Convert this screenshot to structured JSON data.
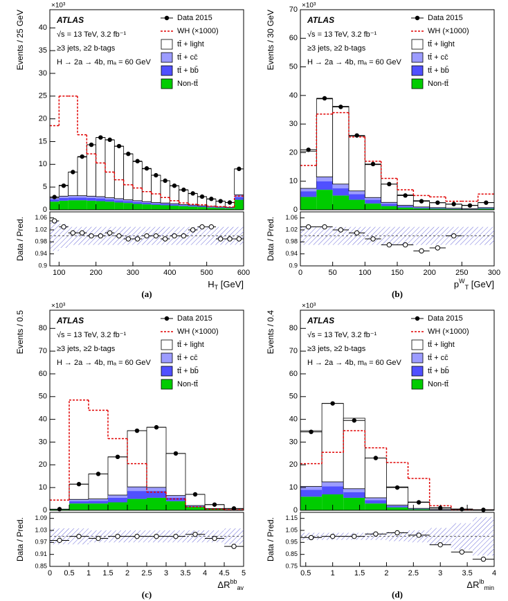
{
  "chart_data": [
    {
      "type": "stacked-histogram",
      "label": "(a)",
      "multiplier": "×10³",
      "atlas": "ATLAS",
      "annotations": [
        "√s = 13 TeV, 3.2 fb⁻¹",
        "≥3 jets, ≥2 b-tags",
        "H → 2a → 4b, mₐ = 60 GeV"
      ],
      "y_label": "Events / 25 GeV",
      "x_label": [
        {
          "text": "H"
        },
        {
          "text": "T",
          "shift": "sub"
        },
        {
          "text": " [GeV]"
        }
      ],
      "xlim": [
        75,
        600
      ],
      "xticks": [
        100,
        200,
        300,
        400,
        500,
        600
      ],
      "ylim": [
        0,
        44
      ],
      "yticks": [
        0,
        5,
        10,
        15,
        20,
        25,
        30,
        35,
        40
      ],
      "bins": [
        75,
        100,
        125,
        150,
        175,
        200,
        225,
        250,
        275,
        300,
        325,
        350,
        375,
        400,
        425,
        450,
        475,
        500,
        525,
        550,
        575,
        600
      ],
      "series": [
        {
          "name": "Non-tt̄",
          "color": "#00cc00",
          "values": [
            1.8,
            2.0,
            2.1,
            2.1,
            2.0,
            1.9,
            1.8,
            1.6,
            1.5,
            1.3,
            1.2,
            1.1,
            1.0,
            0.9,
            0.8,
            0.7,
            0.6,
            0.5,
            0.4,
            0.35,
            2.2
          ]
        },
        {
          "name": "tt̄ + bb̄",
          "color": "#5050ff",
          "values": [
            0.5,
            0.6,
            0.6,
            0.6,
            0.6,
            0.6,
            0.5,
            0.5,
            0.4,
            0.4,
            0.35,
            0.3,
            0.3,
            0.25,
            0.2,
            0.2,
            0.15,
            0.15,
            0.12,
            0.1,
            0.6
          ]
        },
        {
          "name": "tt̄ + cc̄",
          "color": "#9c9cff",
          "values": [
            0.3,
            0.4,
            0.4,
            0.4,
            0.4,
            0.4,
            0.35,
            0.35,
            0.3,
            0.3,
            0.25,
            0.2,
            0.2,
            0.2,
            0.15,
            0.15,
            0.12,
            0.1,
            0.1,
            0.08,
            0.5
          ]
        },
        {
          "name": "tt̄ + light",
          "color": "#ffffff",
          "values": [
            0.2,
            2.4,
            5.2,
            8.5,
            11.3,
            13.0,
            12.7,
            11.5,
            10.1,
            8.6,
            7.2,
            6.0,
            4.9,
            3.9,
            3.2,
            2.5,
            2.0,
            1.6,
            1.3,
            1.1,
            5.7
          ]
        }
      ],
      "data": {
        "name": "Data 2015",
        "values": [
          2.8,
          5.3,
          8.3,
          11.7,
          14.3,
          15.9,
          15.4,
          14.0,
          12.3,
          10.7,
          9.1,
          7.6,
          6.4,
          5.3,
          4.4,
          3.6,
          2.9,
          2.4,
          1.9,
          1.6,
          9.0
        ]
      },
      "signal": {
        "name": "WH (×1000)",
        "color": "#e00000",
        "values": [
          18.5,
          25,
          25,
          16.5,
          12.3,
          10.3,
          8.3,
          6.6,
          5.5,
          4.8,
          4.0,
          3.5,
          2.7,
          2.0,
          1.5,
          1.2,
          1.1,
          0.8,
          0.7,
          0.6,
          3.0
        ]
      },
      "ratio": {
        "y_label": "Data / Pred.",
        "ylim": [
          0.9,
          1.08
        ],
        "yticks": [
          0.9,
          0.94,
          0.98,
          1.02,
          1.06
        ],
        "reference": 1,
        "values": [
          1.05,
          1.03,
          1.01,
          1.01,
          1.0,
          1.0,
          1.01,
          1.0,
          0.99,
          0.99,
          1.0,
          1.0,
          0.99,
          1.0,
          1.0,
          1.02,
          1.03,
          1.03,
          0.99,
          0.99,
          0.99
        ],
        "band": [
          0.05,
          0.04,
          0.03,
          0.03,
          0.03,
          0.03,
          0.03,
          0.03,
          0.03,
          0.03,
          0.03,
          0.03,
          0.03,
          0.03,
          0.03,
          0.03,
          0.03,
          0.03,
          0.03,
          0.03,
          0.03
        ]
      }
    },
    {
      "type": "stacked-histogram",
      "label": "(b)",
      "multiplier": "×10³",
      "atlas": "ATLAS",
      "annotations": [
        "√s = 13 TeV, 3.2 fb⁻¹",
        "≥3 jets, ≥2 b-tags",
        "H → 2a → 4b, mₐ = 60 GeV"
      ],
      "y_label": "Events / 30 GeV",
      "x_label": [
        {
          "text": "p"
        },
        {
          "text": "W",
          "shift": "sup"
        },
        {
          "text": "T",
          "shift": "sub"
        },
        {
          "text": " [GeV]"
        }
      ],
      "xlim": [
        0,
        300
      ],
      "xticks": [
        0,
        50,
        100,
        150,
        200,
        250,
        300
      ],
      "ylim": [
        0,
        70
      ],
      "yticks": [
        0,
        10,
        20,
        30,
        40,
        50,
        60,
        70
      ],
      "bins": [
        0,
        25,
        50,
        75,
        100,
        125,
        150,
        175,
        200,
        225,
        250,
        275,
        300
      ],
      "series": [
        {
          "name": "Non-tt̄",
          "color": "#00cc00",
          "values": [
            4.5,
            7,
            5,
            3.5,
            2.2,
            1.3,
            0.8,
            0.5,
            0.4,
            0.3,
            0.2,
            0.4
          ]
        },
        {
          "name": "tt̄ + bb̄",
          "color": "#5050ff",
          "values": [
            2,
            3,
            2.5,
            2,
            1.3,
            0.8,
            0.5,
            0.3,
            0.2,
            0.15,
            0.1,
            0.2
          ]
        },
        {
          "name": "tt̄ + cc̄",
          "color": "#9c9cff",
          "values": [
            1,
            1.5,
            1.5,
            1.1,
            0.8,
            0.5,
            0.3,
            0.2,
            0.15,
            0.1,
            0.1,
            0.15
          ]
        },
        {
          "name": "tt̄ + light",
          "color": "#ffffff",
          "values": [
            13,
            27.3,
            27.2,
            19.1,
            11.5,
            6.4,
            3.6,
            2.2,
            1.7,
            1.4,
            1.2,
            1.8
          ]
        }
      ],
      "data": {
        "name": "Data 2015",
        "values": [
          21,
          39,
          36,
          26,
          16,
          9,
          5,
          3,
          2.5,
          2,
          1.5,
          2.5
        ]
      },
      "signal": {
        "name": "WH (×1000)",
        "color": "#e00000",
        "values": [
          15.5,
          33.5,
          34,
          25.5,
          17,
          11,
          7,
          5,
          4.5,
          3,
          3,
          5.5
        ]
      },
      "ratio": {
        "y_label": "Data / Pred.",
        "ylim": [
          0.9,
          1.08
        ],
        "yticks": [
          0.9,
          0.94,
          0.98,
          1.02,
          1.06
        ],
        "reference": 1,
        "values": [
          1.03,
          1.03,
          1.02,
          1.01,
          0.99,
          0.97,
          0.97,
          0.95,
          0.96,
          1.0,
          null,
          null
        ],
        "band": [
          0.03,
          0.03,
          0.03,
          0.03,
          0.03,
          0.03,
          0.03,
          0.03,
          0.03,
          0.03,
          0.03,
          0.03
        ]
      }
    },
    {
      "type": "stacked-histogram",
      "label": "(c)",
      "multiplier": "×10³",
      "atlas": "ATLAS",
      "annotations": [
        "√s = 13 TeV, 3.2 fb⁻¹",
        "≥3 jets, ≥2 b-tags",
        "H → 2a → 4b, mₐ = 60 GeV"
      ],
      "y_label": "Events / 0.5",
      "x_label": [
        {
          "text": "ΔR"
        },
        {
          "text": "bb",
          "shift": "sup"
        },
        {
          "text": "av",
          "shift": "sub"
        }
      ],
      "xlim": [
        0,
        5
      ],
      "xticks": [
        0,
        0.5,
        1,
        1.5,
        2,
        2.5,
        3,
        3.5,
        4,
        4.5,
        5
      ],
      "ylim": [
        0,
        88
      ],
      "yticks": [
        0,
        10,
        20,
        30,
        40,
        50,
        60,
        70,
        80
      ],
      "bins": [
        0,
        0.5,
        1,
        1.5,
        2,
        2.5,
        3,
        3.5,
        4,
        4.5,
        5
      ],
      "series": [
        {
          "name": "Non-tt̄",
          "color": "#00cc00",
          "values": [
            0.3,
            3,
            3,
            3.5,
            5,
            5.5,
            4,
            1.5,
            0.6,
            0.2
          ]
        },
        {
          "name": "tt̄ + bb̄",
          "color": "#5050ff",
          "values": [
            0.1,
            1,
            1.2,
            2,
            3.5,
            3,
            1.5,
            0.3,
            0.1,
            0.05
          ]
        },
        {
          "name": "tt̄ + cc̄",
          "color": "#9c9cff",
          "values": [
            0.1,
            0.8,
            0.8,
            1.2,
            1.8,
            1.6,
            1,
            0.3,
            0.1,
            0.05
          ]
        },
        {
          "name": "tt̄ + light",
          "color": "#ffffff",
          "values": [
            0,
            6.7,
            11,
            16.8,
            24.7,
            26.4,
            18.5,
            4.9,
            1.7,
            0.5
          ]
        }
      ],
      "data": {
        "name": "Data 2015",
        "values": [
          0.5,
          11.5,
          16,
          23.5,
          35,
          36.5,
          25,
          7,
          2.5,
          0.8
        ]
      },
      "signal": {
        "name": "WH (×1000)",
        "color": "#e00000",
        "values": [
          4.5,
          48.5,
          44,
          31.5,
          20.5,
          8,
          5,
          1.5,
          0.5,
          0.3
        ]
      },
      "ratio": {
        "y_label": "Data / Pred.",
        "ylim": [
          0.85,
          1.12
        ],
        "yticks": [
          0.85,
          0.91,
          0.97,
          1.03,
          1.09
        ],
        "reference": 1,
        "values": [
          0.98,
          1.0,
          0.99,
          1.0,
          1.0,
          1.0,
          1.0,
          1.01,
          0.99,
          0.95
        ],
        "band": [
          0.04,
          0.04,
          0.03,
          0.03,
          0.03,
          0.03,
          0.03,
          0.03,
          0.03,
          0.04
        ]
      }
    },
    {
      "type": "stacked-histogram",
      "label": "(d)",
      "multiplier": "×10³",
      "atlas": "ATLAS",
      "annotations": [
        "√s = 13 TeV, 3.2 fb⁻¹",
        "≥3 jets, ≥2 b-tags",
        "H → 2a → 4b, mₐ = 60 GeV"
      ],
      "y_label": "Events / 0.4",
      "x_label": [
        {
          "text": "ΔR"
        },
        {
          "text": "lb",
          "shift": "sup"
        },
        {
          "text": "min",
          "shift": "sub"
        }
      ],
      "xlim": [
        0.4,
        4
      ],
      "xticks": [
        0.5,
        1,
        1.5,
        2,
        2.5,
        3,
        3.5,
        4
      ],
      "ylim": [
        0,
        88
      ],
      "yticks": [
        0,
        10,
        20,
        30,
        40,
        50,
        60,
        70,
        80
      ],
      "bins": [
        0.4,
        0.8,
        1.2,
        1.6,
        2,
        2.4,
        2.8,
        3.2,
        3.6,
        4
      ],
      "series": [
        {
          "name": "Non-tt̄",
          "color": "#00cc00",
          "values": [
            6,
            7,
            5.5,
            3,
            1.3,
            0.5,
            0.2,
            0.1,
            0.05
          ]
        },
        {
          "name": "tt̄ + bb̄",
          "color": "#5050ff",
          "values": [
            3,
            3.5,
            2.5,
            1.5,
            0.6,
            0.2,
            0.1,
            0.05,
            0.02
          ]
        },
        {
          "name": "tt̄ + cc̄",
          "color": "#9c9cff",
          "values": [
            1.5,
            2,
            1.5,
            1,
            0.4,
            0.15,
            0.05,
            0.03,
            0.01
          ]
        },
        {
          "name": "tt̄ + light",
          "color": "#ffffff",
          "values": [
            24.5,
            34.5,
            31,
            17.5,
            8,
            2.8,
            0.8,
            0.4,
            0.2
          ]
        }
      ],
      "data": {
        "name": "Data 2015",
        "values": [
          34.5,
          47,
          39.5,
          23,
          10,
          3.5,
          1,
          0.5,
          0.2
        ]
      },
      "signal": {
        "name": "WH (×1000)",
        "color": "#e00000",
        "values": [
          20.5,
          25.5,
          35,
          27.5,
          21,
          14,
          2,
          0.3,
          0.1
        ]
      },
      "ratio": {
        "y_label": "Data / Pred.",
        "ylim": [
          0.75,
          1.2
        ],
        "yticks": [
          0.75,
          0.85,
          0.95,
          1.05,
          1.15
        ],
        "reference": 1,
        "values": [
          0.99,
          1.0,
          1.0,
          1.02,
          1.03,
          1.01,
          0.93,
          0.87,
          0.81
        ],
        "band": [
          0.03,
          0.03,
          0.03,
          0.03,
          0.04,
          0.05,
          0.07,
          0.11,
          0.16
        ]
      }
    }
  ]
}
